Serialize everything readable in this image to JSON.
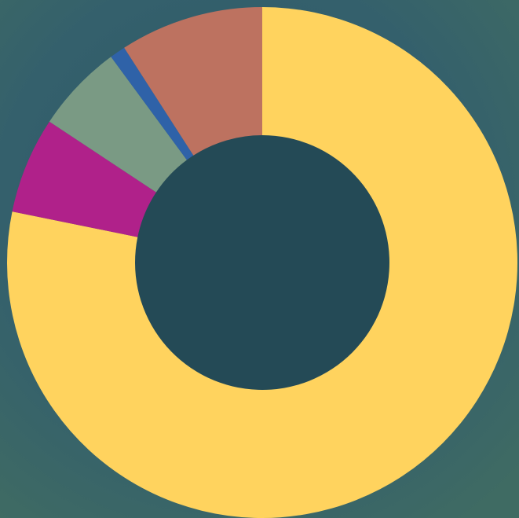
{
  "chart_data": {
    "type": "donut",
    "categories": [
      null,
      null,
      null,
      null,
      null
    ],
    "values": [
      78.2,
      6.1,
      5.6,
      1.0,
      9.1
    ],
    "colors": [
      "#ffd35e",
      "#b0218a",
      "#7a9a84",
      "#2f62a8",
      "#bd7260"
    ]
  }
}
